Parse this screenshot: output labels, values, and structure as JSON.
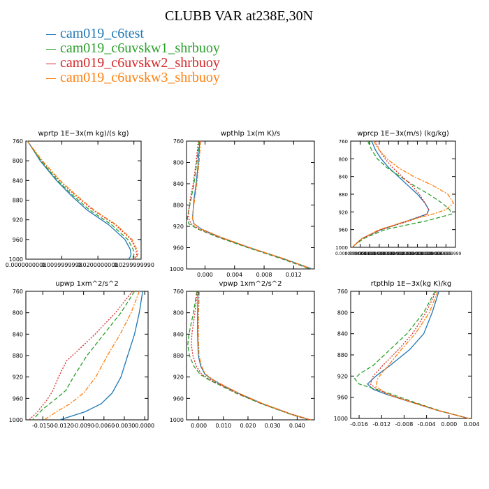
{
  "figure": {
    "title": "CLUBB VAR at238E,30N"
  },
  "legend": [
    {
      "name": "cam019_c6test",
      "color": "#1f77b4",
      "style": "solid"
    },
    {
      "name": "cam019_c6uvskw1_shrbuoy",
      "color": "#2ca02c",
      "style": "dash"
    },
    {
      "name": "cam019_c6uvskw2_shrbuoy",
      "color": "#d62728",
      "style": "dot"
    },
    {
      "name": "cam019_c6uvskw3_shrbuoy",
      "color": "#ff7f0e",
      "style": "dashdot"
    }
  ],
  "chart_data": [
    {
      "type": "line",
      "title": "wprtp  1E−3x(m kg)/(s kg)",
      "xlim": [
        0.0,
        0.032
      ],
      "ylim": [
        760,
        1000
      ],
      "xticks": [
        0.0,
        0.0099999998,
        0.02,
        0.029999999
      ],
      "xtick_labels": [
        "0.0000000000",
        "0.0099999998",
        "0.0200000000",
        "0.0299999990"
      ],
      "yticks": [
        760,
        800,
        840,
        880,
        920,
        960,
        1000
      ],
      "series": [
        {
          "y": [
            760,
            800,
            840,
            870,
            900,
            930,
            960,
            980,
            990,
            995,
            1000
          ],
          "x": [
            0.0005,
            0.004,
            0.0085,
            0.0125,
            0.017,
            0.023,
            0.0275,
            0.029,
            0.0292,
            0.029,
            0.0285
          ]
        },
        {
          "y": [
            760,
            800,
            840,
            870,
            900,
            930,
            960,
            980,
            990,
            995,
            1000
          ],
          "x": [
            0.0004,
            0.0042,
            0.0088,
            0.013,
            0.0177,
            0.0238,
            0.0283,
            0.0298,
            0.03,
            0.0298,
            0.0292
          ]
        },
        {
          "y": [
            760,
            800,
            840,
            870,
            900,
            930,
            960,
            980,
            990,
            995,
            1000
          ],
          "x": [
            0.0004,
            0.0045,
            0.0093,
            0.0137,
            0.0186,
            0.0248,
            0.0292,
            0.0305,
            0.0308,
            0.0306,
            0.03
          ]
        },
        {
          "y": [
            760,
            800,
            840,
            870,
            900,
            930,
            960,
            980,
            990,
            995,
            1000
          ],
          "x": [
            0.0004,
            0.0046,
            0.0095,
            0.014,
            0.0189,
            0.0251,
            0.0295,
            0.0308,
            0.0311,
            0.0308,
            0.0302
          ]
        }
      ]
    },
    {
      "type": "line",
      "title": "wpthlp  1x(m K)/s",
      "xlim": [
        -0.0025,
        0.0148
      ],
      "ylim": [
        760,
        1000
      ],
      "xticks": [
        0.0,
        0.004,
        0.008,
        0.012
      ],
      "xtick_labels": [
        "0.000",
        "0.004",
        "0.008",
        "0.012"
      ],
      "yticks": [
        760,
        800,
        840,
        880,
        920,
        960,
        1000
      ],
      "series": [
        {
          "y": [
            760,
            800,
            840,
            870,
            890,
            905,
            915,
            925,
            940,
            960,
            980,
            1000
          ],
          "x": [
            -0.0007,
            -0.0009,
            -0.0012,
            -0.0015,
            -0.0016,
            -0.0017,
            -0.0015,
            -0.0005,
            0.002,
            0.006,
            0.0105,
            0.0145
          ]
        },
        {
          "y": [
            760,
            800,
            840,
            870,
            890,
            905,
            915,
            925,
            940,
            960,
            980,
            1000
          ],
          "x": [
            -0.0008,
            -0.0011,
            -0.0015,
            -0.0019,
            -0.0022,
            -0.0024,
            -0.0022,
            -0.001,
            0.0017,
            0.0058,
            0.0102,
            0.0142
          ]
        },
        {
          "y": [
            760,
            800,
            840,
            870,
            890,
            905,
            915,
            925,
            940,
            960,
            980,
            1000
          ],
          "x": [
            -0.0009,
            -0.0012,
            -0.0016,
            -0.002,
            -0.0022,
            -0.0022,
            -0.0019,
            -0.0008,
            0.0019,
            0.006,
            0.0104,
            0.0144
          ]
        },
        {
          "y": [
            760,
            800,
            840,
            870,
            890,
            905,
            915,
            925,
            940,
            960,
            980,
            1000
          ],
          "x": [
            -0.0006,
            -0.0008,
            -0.0011,
            -0.0014,
            -0.0016,
            -0.0017,
            -0.0015,
            -0.0005,
            0.0021,
            0.0061,
            0.0105,
            0.0145
          ]
        }
      ]
    },
    {
      "type": "line",
      "title": "wprcp  1E−3x(m/s) (kg/kg)",
      "xlim": [
        0.0,
        0.0055
      ],
      "ylim": [
        760,
        1000
      ],
      "xticks": [
        0.0,
        0.0005,
        0.001,
        0.0015,
        0.002,
        0.0025,
        0.003,
        0.0035,
        0.004,
        0.0045,
        0.005
      ],
      "xtick_labels": [
        "0.0000000000",
        "0.0004999999",
        "0.0009999999",
        "0.0014999999",
        "0.0019999999",
        "0.0024999999",
        "0.0029999999",
        "0.0034999999",
        "0.0039999999",
        "0.0044999999",
        "0.0049999999"
      ],
      "yticks": [
        760,
        800,
        840,
        880,
        920,
        960,
        1000
      ],
      "series": [
        {
          "y": [
            760,
            780,
            800,
            820,
            840,
            860,
            880,
            900,
            915,
            925,
            940,
            960,
            980,
            995,
            1000
          ],
          "x": [
            0.0011,
            0.0013,
            0.0016,
            0.002,
            0.0025,
            0.003,
            0.0035,
            0.0039,
            0.0041,
            0.004,
            0.003,
            0.0016,
            0.0006,
            0.0002,
            0.0001
          ]
        },
        {
          "y": [
            760,
            780,
            800,
            820,
            840,
            860,
            880,
            900,
            915,
            925,
            940,
            960,
            980,
            995,
            1000
          ],
          "x": [
            0.0009,
            0.0011,
            0.0014,
            0.0019,
            0.0026,
            0.0033,
            0.0041,
            0.0048,
            0.0052,
            0.0053,
            0.004,
            0.0018,
            0.0007,
            0.0002,
            0.0001
          ]
        },
        {
          "y": [
            760,
            780,
            800,
            820,
            840,
            860,
            880,
            900,
            915,
            925,
            940,
            960,
            980,
            995,
            1000
          ],
          "x": [
            0.0013,
            0.0015,
            0.0018,
            0.0022,
            0.0027,
            0.0032,
            0.0036,
            0.0039,
            0.0041,
            0.004,
            0.0031,
            0.0016,
            0.0006,
            0.0002,
            0.0001
          ]
        },
        {
          "y": [
            760,
            780,
            800,
            820,
            840,
            860,
            880,
            900,
            915,
            925,
            940,
            960,
            980,
            995,
            1000
          ],
          "x": [
            0.0012,
            0.0015,
            0.0019,
            0.0025,
            0.0033,
            0.0043,
            0.0051,
            0.0054,
            0.005,
            0.0043,
            0.003,
            0.0015,
            0.0006,
            0.0002,
            0.0001
          ]
        }
      ]
    },
    {
      "type": "line",
      "title": "upwp  1xm^2/s^2",
      "xlim": [
        -0.0175,
        0.0005
      ],
      "ylim": [
        760,
        1000
      ],
      "xticks": [
        -0.015,
        -0.012,
        -0.009,
        -0.006,
        -0.003,
        0.0
      ],
      "xtick_labels": [
        "-0.0150",
        "-0.0120",
        "-0.0090",
        "-0.0060",
        "-0.0030",
        "0.0000"
      ],
      "yticks": [
        760,
        800,
        840,
        880,
        920,
        960,
        1000
      ],
      "series": [
        {
          "y": [
            760,
            800,
            840,
            880,
            920,
            950,
            970,
            985,
            1000
          ],
          "x": [
            -0.0003,
            -0.0008,
            -0.0015,
            -0.0025,
            -0.0035,
            -0.0048,
            -0.0064,
            -0.0088,
            -0.0125
          ]
        },
        {
          "y": [
            760,
            800,
            840,
            880,
            920,
            945,
            960,
            980,
            1000
          ],
          "x": [
            -0.0015,
            -0.0035,
            -0.006,
            -0.0085,
            -0.0105,
            -0.0116,
            -0.013,
            -0.015,
            -0.0165
          ]
        },
        {
          "y": [
            760,
            800,
            840,
            870,
            890,
            920,
            945,
            965,
            985,
            1000
          ],
          "x": [
            -0.0018,
            -0.0043,
            -0.0073,
            -0.0098,
            -0.0115,
            -0.0127,
            -0.0135,
            -0.0145,
            -0.0158,
            -0.017
          ]
        },
        {
          "y": [
            760,
            800,
            840,
            880,
            920,
            950,
            970,
            985,
            1000
          ],
          "x": [
            -0.0008,
            -0.002,
            -0.0036,
            -0.0055,
            -0.0072,
            -0.009,
            -0.011,
            -0.013,
            -0.0148
          ]
        }
      ]
    },
    {
      "type": "line",
      "title": "vpwp  1xm^2/s^2",
      "xlim": [
        -0.005,
        0.047
      ],
      "ylim": [
        760,
        1000
      ],
      "xticks": [
        0.0,
        0.01,
        0.02,
        0.03,
        0.04
      ],
      "xtick_labels": [
        "0.000",
        "0.010",
        "0.020",
        "0.030",
        "0.040"
      ],
      "yticks": [
        760,
        800,
        840,
        880,
        920,
        960,
        1000
      ],
      "series": [
        {
          "y": [
            760,
            800,
            840,
            880,
            900,
            915,
            925,
            935,
            950,
            970,
            990,
            1000
          ],
          "x": [
            -0.0003,
            -0.0005,
            -0.0005,
            -0.0002,
            0.0008,
            0.0025,
            0.0055,
            0.0095,
            0.016,
            0.026,
            0.038,
            0.0455
          ]
        },
        {
          "y": [
            760,
            800,
            840,
            860,
            880,
            900,
            915,
            925,
            935,
            950,
            970,
            990,
            1000
          ],
          "x": [
            -0.0008,
            -0.0022,
            -0.004,
            -0.0045,
            -0.0038,
            -0.002,
            0.0005,
            0.004,
            0.0085,
            0.015,
            0.0255,
            0.0375,
            0.045
          ]
        },
        {
          "y": [
            760,
            800,
            840,
            860,
            880,
            900,
            915,
            925,
            935,
            950,
            970,
            990,
            1000
          ],
          "x": [
            -0.0006,
            -0.0016,
            -0.0028,
            -0.003,
            -0.0024,
            -0.001,
            0.0012,
            0.0046,
            0.009,
            0.0155,
            0.0258,
            0.0378,
            0.0452
          ]
        },
        {
          "y": [
            760,
            800,
            840,
            880,
            900,
            915,
            925,
            935,
            950,
            970,
            990,
            1000
          ],
          "x": [
            0.0002,
            -0.0001,
            -0.0002,
            0.0001,
            0.0011,
            0.0028,
            0.0058,
            0.0098,
            0.0162,
            0.0262,
            0.0381,
            0.0455
          ]
        }
      ]
    },
    {
      "type": "line",
      "title": "rtpthlp  1E−3x(kg K)/kg",
      "xlim": [
        -0.0175,
        0.004
      ],
      "ylim": [
        760,
        1000
      ],
      "xticks": [
        -0.016,
        -0.012,
        -0.008,
        -0.004,
        0.0,
        0.004
      ],
      "xtick_labels": [
        "-0.016",
        "-0.012",
        "-0.008",
        "-0.004",
        "0.000",
        "0.004"
      ],
      "yticks": [
        760,
        800,
        840,
        880,
        920,
        960,
        1000
      ],
      "series": [
        {
          "y": [
            760,
            800,
            840,
            870,
            900,
            920,
            935,
            945,
            955,
            970,
            985,
            1000
          ],
          "x": [
            -0.0018,
            -0.003,
            -0.0045,
            -0.007,
            -0.0105,
            -0.013,
            -0.0145,
            -0.0135,
            -0.011,
            -0.0065,
            -0.002,
            0.0035
          ]
        },
        {
          "y": [
            760,
            800,
            840,
            870,
            900,
            915,
            925,
            935,
            945,
            955,
            970,
            985,
            1000
          ],
          "x": [
            -0.0025,
            -0.0045,
            -0.0075,
            -0.0105,
            -0.0135,
            -0.0158,
            -0.0168,
            -0.016,
            -0.013,
            -0.01,
            -0.006,
            -0.0018,
            0.0035
          ]
        },
        {
          "y": [
            760,
            800,
            840,
            870,
            900,
            920,
            935,
            945,
            955,
            970,
            985,
            1000
          ],
          "x": [
            -0.0023,
            -0.0041,
            -0.0065,
            -0.009,
            -0.0118,
            -0.0135,
            -0.014,
            -0.0128,
            -0.0105,
            -0.0063,
            -0.0019,
            0.0036
          ]
        },
        {
          "y": [
            760,
            800,
            840,
            870,
            900,
            915,
            925,
            940,
            955,
            970,
            985,
            1000
          ],
          "x": [
            -0.002,
            -0.0035,
            -0.006,
            -0.0085,
            -0.0108,
            -0.012,
            -0.0127,
            -0.013,
            -0.0108,
            -0.0065,
            -0.002,
            0.0036
          ]
        }
      ]
    }
  ]
}
